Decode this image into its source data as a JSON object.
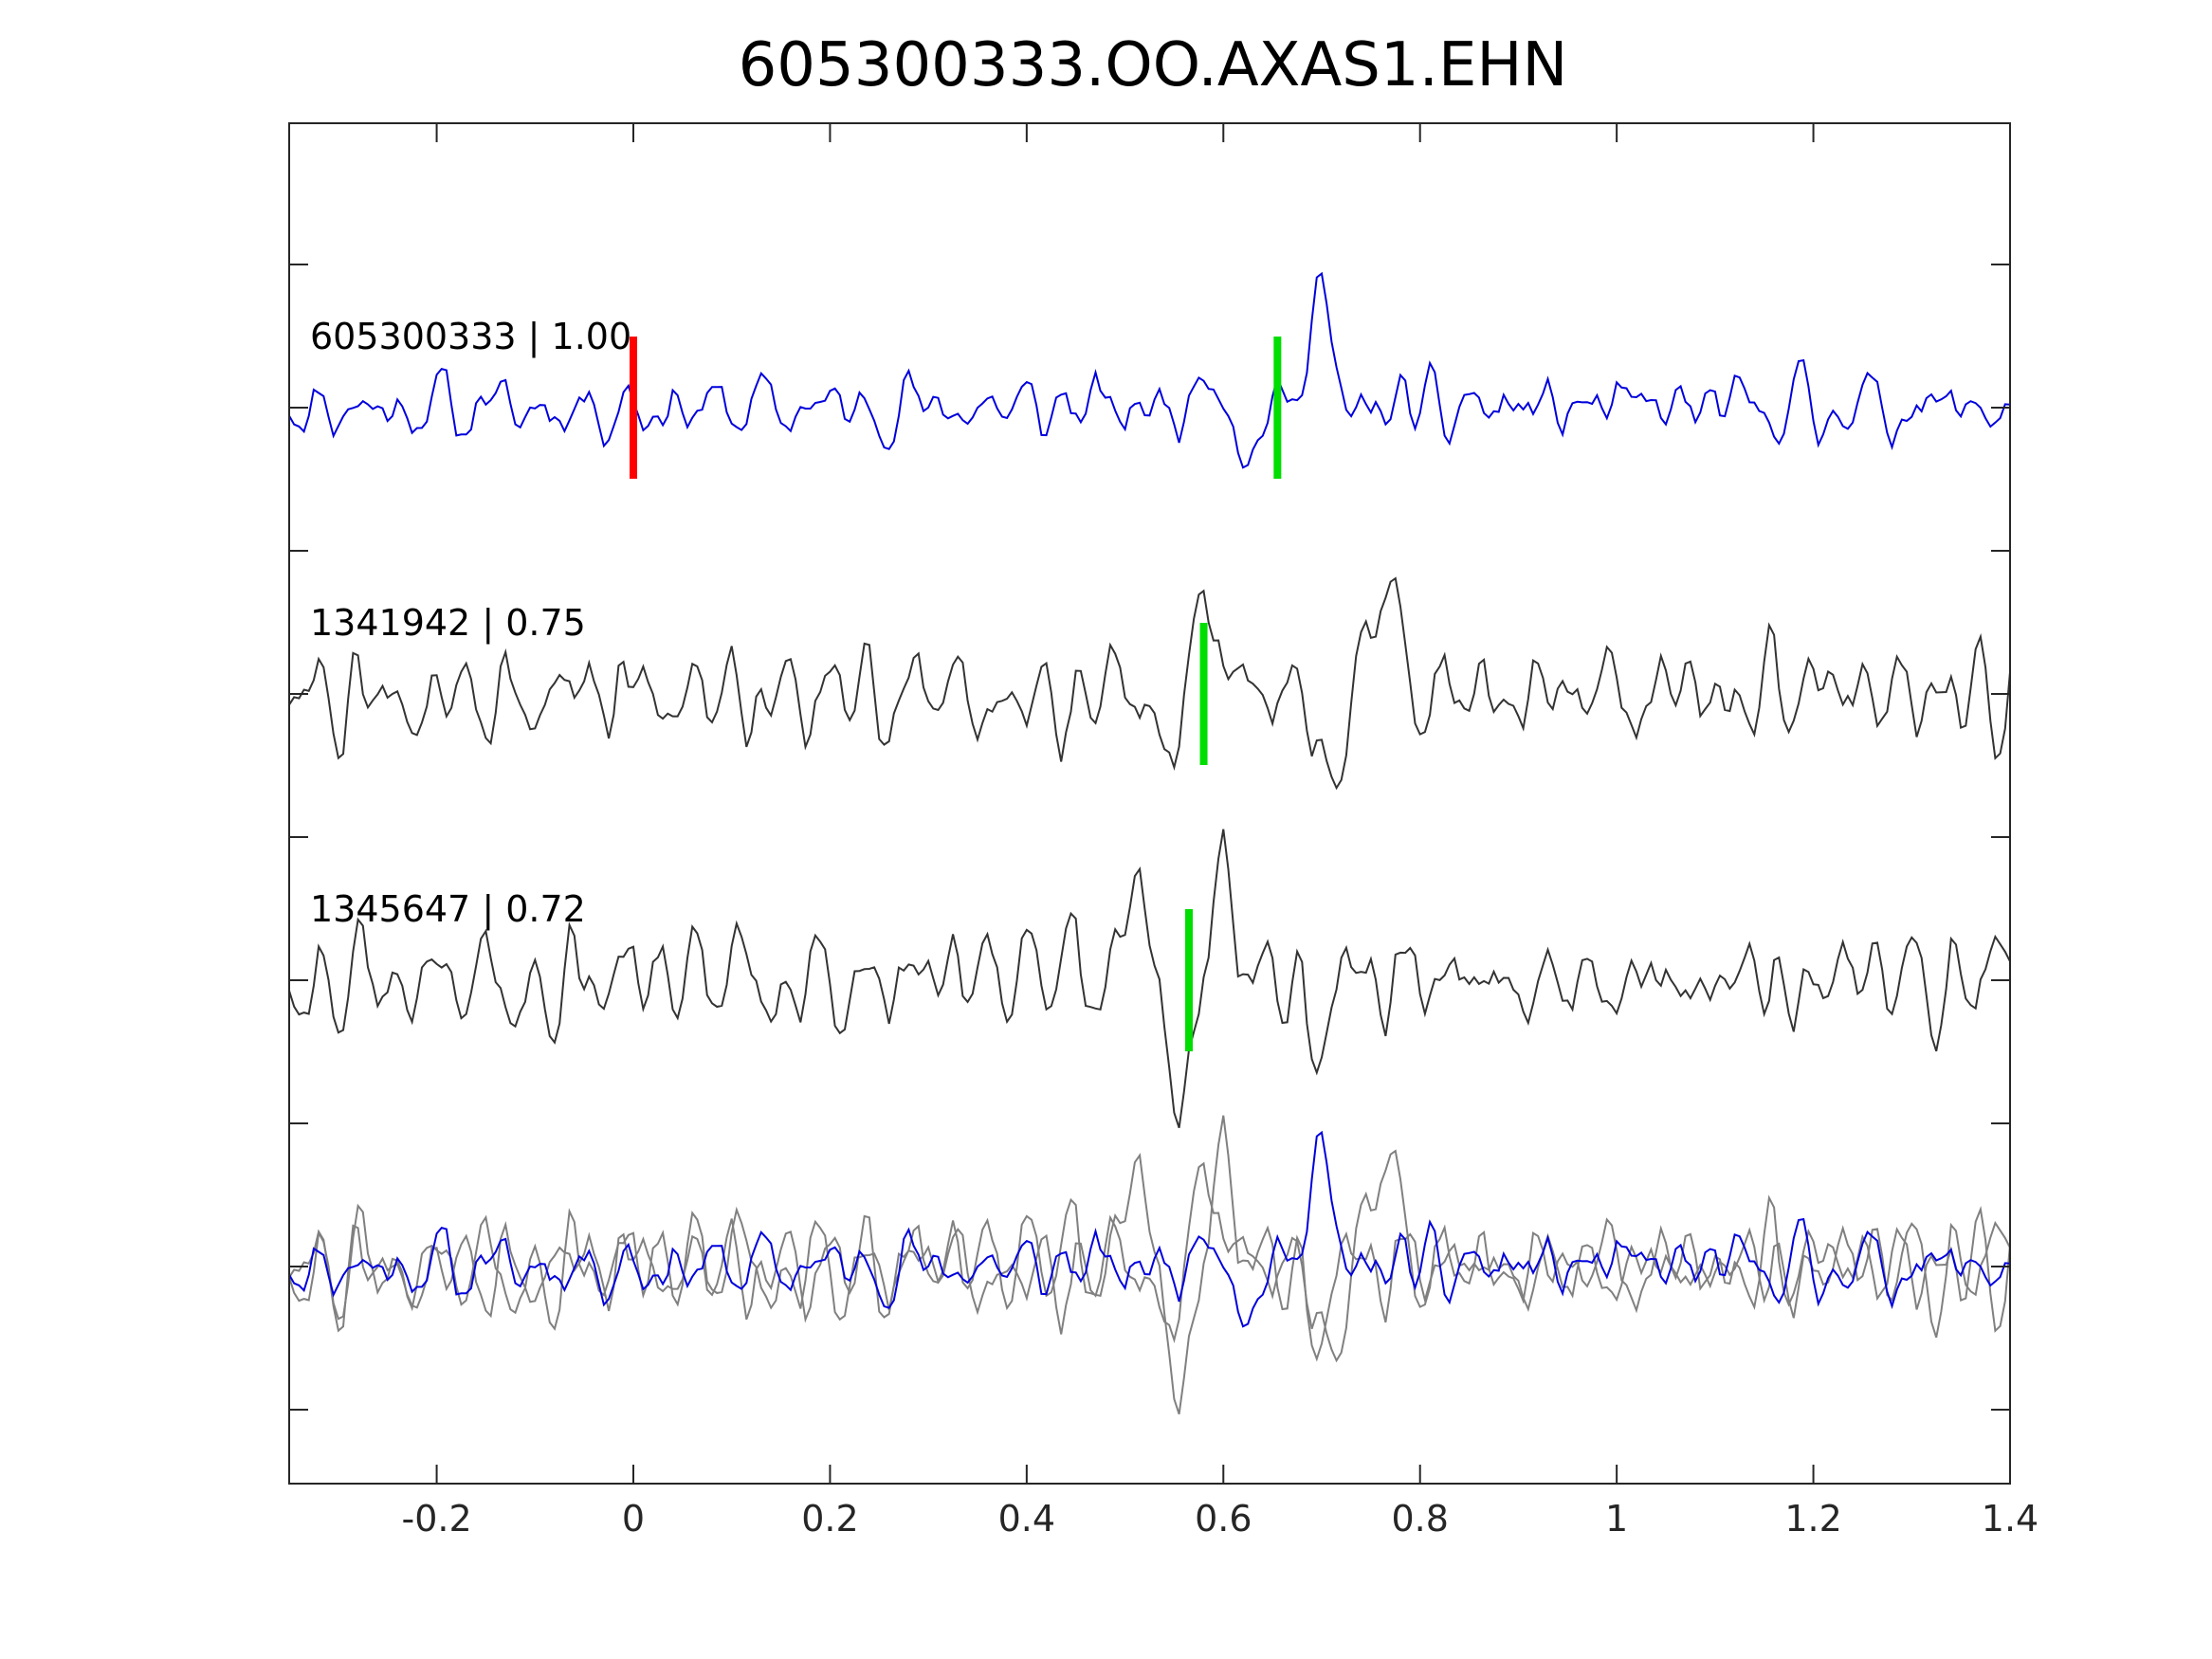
{
  "chart_data": {
    "type": "line",
    "title": "605300333.OO.AXAS1.EHN",
    "xlabel": "",
    "ylabel": "",
    "xlim": [
      -0.35,
      1.4
    ],
    "x_ticks": [
      -0.2,
      0,
      0.2,
      0.4,
      0.6,
      0.8,
      1,
      1.2,
      1.4
    ],
    "x_tick_labels": [
      "-0.2",
      "0",
      "0.2",
      "0.4",
      "0.6",
      "0.8",
      "1",
      "1.2",
      "1.4"
    ],
    "y_ticks_labeled": false,
    "grid": false,
    "sample_step": 0.005,
    "traces": [
      {
        "label": "605300333 | 1.00",
        "color": "#0000dd",
        "offset": 0,
        "seed": 11,
        "amplitude": 0.22,
        "picks": [
          {
            "time": 0.0,
            "color": "#ff0000"
          },
          {
            "time": 0.655,
            "color": "#00dd00"
          }
        ],
        "events": [
          {
            "center": 0.585,
            "width": 0.012,
            "amp": 0.38
          },
          {
            "center": 0.625,
            "width": 0.012,
            "amp": -0.45
          },
          {
            "center": 0.695,
            "width": 0.014,
            "amp": 0.9
          }
        ]
      },
      {
        "label": "1341942 | 0.75",
        "color": "#333333",
        "offset": 1,
        "seed": 27,
        "amplitude": 0.3,
        "picks": [
          {
            "time": 0.58,
            "color": "#00dd00"
          }
        ],
        "events": [
          {
            "center": 0.55,
            "width": 0.012,
            "amp": -0.6
          },
          {
            "center": 0.58,
            "width": 0.014,
            "amp": 0.85
          },
          {
            "center": 0.71,
            "width": 0.012,
            "amp": -0.75
          },
          {
            "center": 0.765,
            "width": 0.014,
            "amp": 0.95
          }
        ]
      },
      {
        "label": "1345647 | 0.72",
        "color": "#333333",
        "offset": 2,
        "seed": 43,
        "amplitude": 0.3,
        "picks": [
          {
            "time": 0.565,
            "color": "#00dd00"
          }
        ],
        "events": [
          {
            "center": 0.51,
            "width": 0.012,
            "amp": 0.8
          },
          {
            "center": 0.555,
            "width": 0.014,
            "amp": -0.95
          },
          {
            "center": 0.6,
            "width": 0.014,
            "amp": 0.85
          },
          {
            "center": 0.69,
            "width": 0.012,
            "amp": -0.5
          }
        ]
      }
    ],
    "overlay": {
      "offset": 3,
      "reference_color": "#0000dd",
      "other_color": "#808080"
    }
  }
}
